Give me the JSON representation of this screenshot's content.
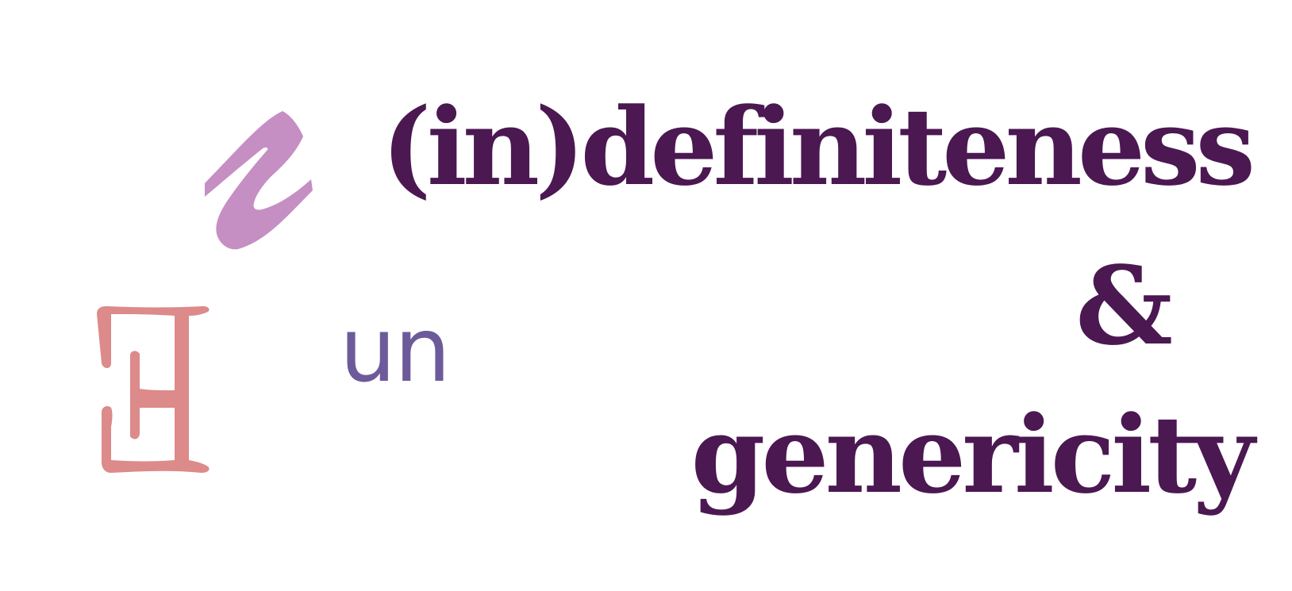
{
  "title": {
    "line1": "(in)definiteness",
    "line2": "&",
    "line3": "genericity"
  },
  "symbols": {
    "iota_operator": "ι",
    "exists_symbol": "∃",
    "un_label": "un"
  },
  "colors": {
    "title": "#4b1852",
    "iota": "#c58fc3",
    "exists": "#dc8a8a",
    "un": "#6d5a9a",
    "background": "#ffffff"
  }
}
